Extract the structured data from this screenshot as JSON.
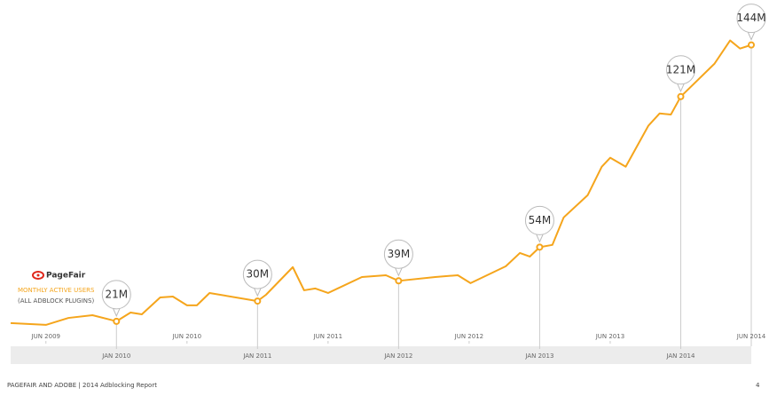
{
  "chart_data": {
    "type": "line",
    "brand": "PageFair",
    "legend_title": "MONTHLY ACTIVE USERS",
    "legend_subtitle": "(ALL ADBLOCK PLUGINS)",
    "footer": "PAGEFAIR AND ADOBE | 2014 Adblocking Report",
    "page_number": "4",
    "xlim": [
      2009.25,
      2014.5
    ],
    "xticks": [
      {
        "value": 2009.5,
        "label": "JUN 2009"
      },
      {
        "value": 2010,
        "label": "JAN 2010"
      },
      {
        "value": 2010.5,
        "label": "JUN 2010"
      },
      {
        "value": 2011,
        "label": "JAN 2011"
      },
      {
        "value": 2011.5,
        "label": "JUN 2011"
      },
      {
        "value": 2012,
        "label": "JAN 2012"
      },
      {
        "value": 2012.5,
        "label": "JUN 2012"
      },
      {
        "value": 2013,
        "label": "JAN 2013"
      },
      {
        "value": 2013.5,
        "label": "JUN 2013"
      },
      {
        "value": 2014,
        "label": "JAN 2014"
      },
      {
        "value": 2014.5,
        "label": "JUN 2014"
      }
    ],
    "ylim": [
      0,
      164
    ],
    "x": [
      2009.25,
      2009.5,
      2009.66,
      2009.83,
      2010.0,
      2010.1,
      2010.18,
      2010.31,
      2010.4,
      2010.5,
      2010.57,
      2010.66,
      2011.0,
      2011.06,
      2011.25,
      2011.33,
      2011.41,
      2011.5,
      2011.74,
      2011.91,
      2012.0,
      2012.26,
      2012.42,
      2012.51,
      2012.76,
      2012.86,
      2012.93,
      2013.0,
      2013.09,
      2013.17,
      2013.34,
      2013.44,
      2013.5,
      2013.61,
      2013.77,
      2013.85,
      2013.93,
      2014.0,
      2014.24,
      2014.35,
      2014.42,
      2014.5
    ],
    "series": [
      {
        "name": "MONTHLY ACTIVE USERS",
        "color": "#f5a51c",
        "values": [
          20.2,
          19.4,
          22.5,
          23.7,
          21,
          24.9,
          24.1,
          31.6,
          32,
          28.1,
          28.1,
          33.6,
          30,
          32.8,
          45.1,
          34.8,
          35.6,
          33.6,
          40.7,
          41.5,
          39,
          40.7,
          41.5,
          38,
          45.5,
          51.4,
          49.8,
          54,
          55,
          67.2,
          77.1,
          89.8,
          93.8,
          89.8,
          108,
          113.5,
          113,
          121,
          135.7,
          146,
          142.4,
          144
        ],
        "value_labels": [
          null,
          null,
          null,
          null,
          "21M",
          null,
          null,
          null,
          null,
          null,
          null,
          null,
          "30M",
          null,
          null,
          null,
          null,
          null,
          null,
          null,
          "39M",
          null,
          null,
          null,
          null,
          null,
          null,
          "54M",
          null,
          null,
          null,
          null,
          null,
          null,
          null,
          null,
          null,
          "121M",
          null,
          null,
          null,
          "144M"
        ]
      }
    ]
  }
}
